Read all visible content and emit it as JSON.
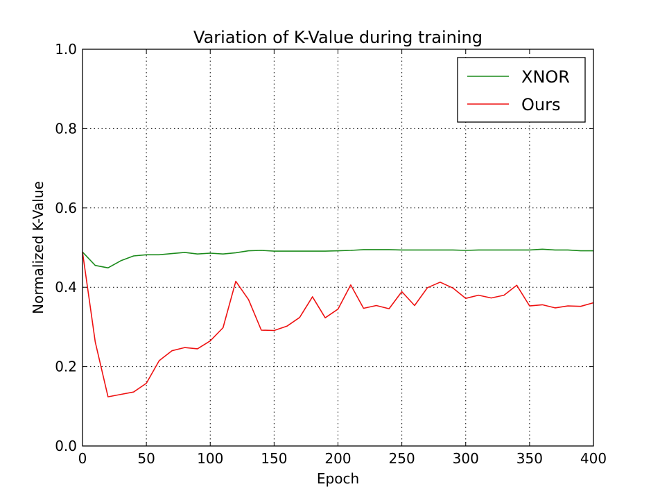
{
  "chart_data": {
    "type": "line",
    "title": "Variation of K-Value during training",
    "xlabel": "Epoch",
    "ylabel": "Normalized K-Value",
    "xlim": [
      0,
      400
    ],
    "ylim": [
      0.0,
      1.0
    ],
    "xticks": [
      0,
      50,
      100,
      150,
      200,
      250,
      300,
      350,
      400
    ],
    "xtick_labels": [
      "0",
      "50",
      "100",
      "150",
      "200",
      "250",
      "300",
      "350",
      "400"
    ],
    "yticks": [
      0.0,
      0.2,
      0.4,
      0.6,
      0.8,
      1.0
    ],
    "ytick_labels": [
      "0.0",
      "0.2",
      "0.4",
      "0.6",
      "0.8",
      "1.0"
    ],
    "grid": true,
    "legend_position": "top-right",
    "x": [
      0,
      10,
      20,
      30,
      40,
      50,
      60,
      70,
      80,
      90,
      100,
      110,
      120,
      130,
      140,
      150,
      160,
      170,
      180,
      190,
      200,
      210,
      220,
      230,
      240,
      250,
      260,
      270,
      280,
      290,
      300,
      310,
      320,
      330,
      340,
      350,
      360,
      370,
      380,
      390,
      400
    ],
    "series": [
      {
        "name": "XNOR",
        "color": "#1a8a1a",
        "values": [
          0.489,
          0.455,
          0.449,
          0.467,
          0.479,
          0.482,
          0.482,
          0.485,
          0.488,
          0.484,
          0.486,
          0.484,
          0.487,
          0.492,
          0.493,
          0.491,
          0.491,
          0.491,
          0.491,
          0.491,
          0.492,
          0.493,
          0.495,
          0.495,
          0.495,
          0.494,
          0.494,
          0.494,
          0.494,
          0.494,
          0.493,
          0.494,
          0.494,
          0.494,
          0.494,
          0.494,
          0.496,
          0.494,
          0.494,
          0.492,
          0.492
        ]
      },
      {
        "name": "Ours",
        "color": "#ee1111",
        "values": [
          0.489,
          0.262,
          0.124,
          0.13,
          0.136,
          0.158,
          0.215,
          0.24,
          0.248,
          0.245,
          0.265,
          0.298,
          0.415,
          0.369,
          0.292,
          0.291,
          0.302,
          0.324,
          0.376,
          0.323,
          0.345,
          0.406,
          0.347,
          0.354,
          0.346,
          0.389,
          0.354,
          0.399,
          0.413,
          0.398,
          0.372,
          0.38,
          0.373,
          0.38,
          0.405,
          0.353,
          0.356,
          0.348,
          0.353,
          0.352,
          0.361
        ]
      }
    ]
  }
}
